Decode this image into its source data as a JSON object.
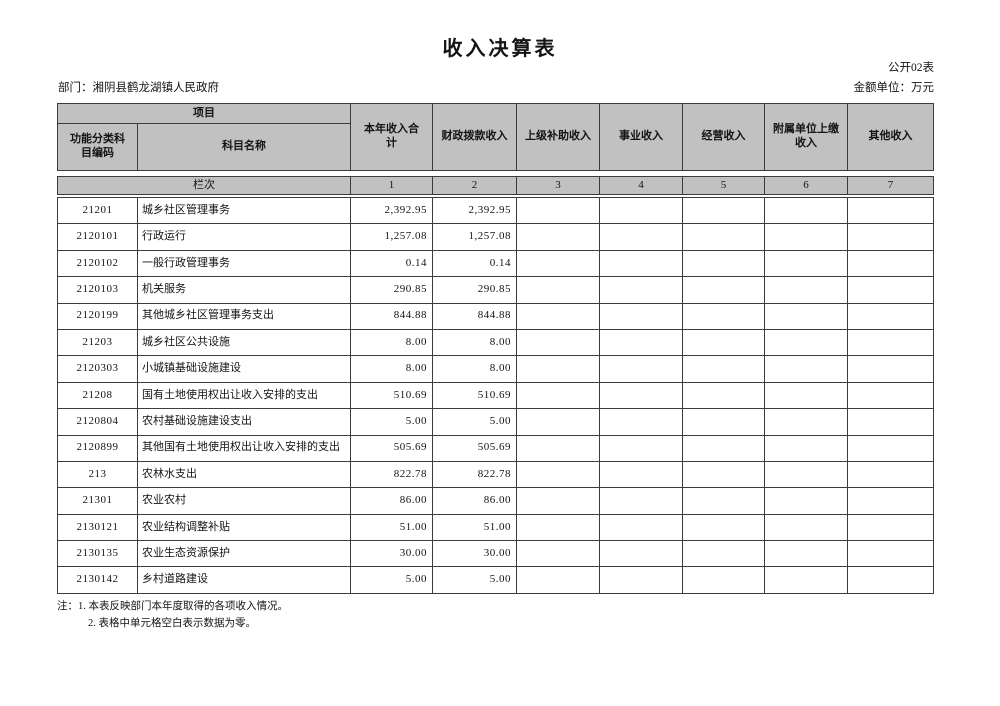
{
  "page": {
    "title": "收入决算表",
    "table_code": "公开02表",
    "department_label": "部门：湘阴县鹤龙湖镇人民政府",
    "unit_label": "金额单位：万元",
    "notes": [
      "注：1. 本表反映部门本年度取得的各项收入情况。",
      "2. 表格中单元格空白表示数据为零。"
    ]
  },
  "table": {
    "header": {
      "project_group_label": "项目",
      "code_label": "功能分类科目编码",
      "name_label": "科目名称",
      "value_columns": [
        "本年收入合计",
        "财政拨款收入",
        "上级补助收入",
        "事业收入",
        "经营收入",
        "附属单位上缴收入",
        "其他收入"
      ]
    },
    "lane_row": {
      "label": "栏次",
      "numbers": [
        "1",
        "2",
        "3",
        "4",
        "5",
        "6",
        "7"
      ]
    },
    "rows": [
      {
        "code": "21201",
        "name": "城乡社区管理事务",
        "values": [
          "2,392.95",
          "2,392.95",
          "",
          "",
          "",
          "",
          ""
        ]
      },
      {
        "code": "2120101",
        "name": "行政运行",
        "values": [
          "1,257.08",
          "1,257.08",
          "",
          "",
          "",
          "",
          ""
        ]
      },
      {
        "code": "2120102",
        "name": "一般行政管理事务",
        "values": [
          "0.14",
          "0.14",
          "",
          "",
          "",
          "",
          ""
        ]
      },
      {
        "code": "2120103",
        "name": "机关服务",
        "values": [
          "290.85",
          "290.85",
          "",
          "",
          "",
          "",
          ""
        ]
      },
      {
        "code": "2120199",
        "name": "其他城乡社区管理事务支出",
        "values": [
          "844.88",
          "844.88",
          "",
          "",
          "",
          "",
          ""
        ]
      },
      {
        "code": "21203",
        "name": "城乡社区公共设施",
        "values": [
          "8.00",
          "8.00",
          "",
          "",
          "",
          "",
          ""
        ]
      },
      {
        "code": "2120303",
        "name": "小城镇基础设施建设",
        "values": [
          "8.00",
          "8.00",
          "",
          "",
          "",
          "",
          ""
        ]
      },
      {
        "code": "21208",
        "name": "国有土地使用权出让收入安排的支出",
        "values": [
          "510.69",
          "510.69",
          "",
          "",
          "",
          "",
          ""
        ]
      },
      {
        "code": "2120804",
        "name": "农村基础设施建设支出",
        "values": [
          "5.00",
          "5.00",
          "",
          "",
          "",
          "",
          ""
        ]
      },
      {
        "code": "2120899",
        "name": "其他国有土地使用权出让收入安排的支出",
        "values": [
          "505.69",
          "505.69",
          "",
          "",
          "",
          "",
          ""
        ]
      },
      {
        "code": "213",
        "name": "农林水支出",
        "values": [
          "822.78",
          "822.78",
          "",
          "",
          "",
          "",
          ""
        ]
      },
      {
        "code": "21301",
        "name": "农业农村",
        "values": [
          "86.00",
          "86.00",
          "",
          "",
          "",
          "",
          ""
        ]
      },
      {
        "code": "2130121",
        "name": "农业结构调整补贴",
        "values": [
          "51.00",
          "51.00",
          "",
          "",
          "",
          "",
          ""
        ]
      },
      {
        "code": "2130135",
        "name": "农业生态资源保护",
        "values": [
          "30.00",
          "30.00",
          "",
          "",
          "",
          "",
          ""
        ]
      },
      {
        "code": "2130142",
        "name": "乡村道路建设",
        "values": [
          "5.00",
          "5.00",
          "",
          "",
          "",
          "",
          ""
        ]
      }
    ]
  },
  "colors": {
    "header_background": "#c1c1c1",
    "border": "#3c3c3c",
    "page_background": "#ffffff",
    "text": "#141414"
  }
}
